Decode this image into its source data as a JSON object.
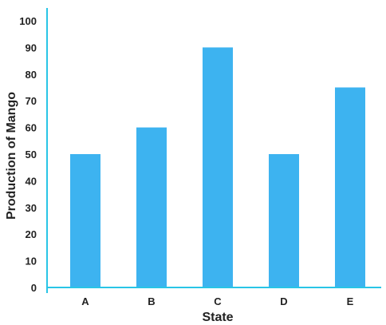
{
  "chart_data": {
    "type": "bar",
    "title": "",
    "xlabel": "State",
    "ylabel": "Production of Mango",
    "categories": [
      "A",
      "B",
      "C",
      "D",
      "E"
    ],
    "values": [
      50,
      60,
      90,
      50,
      75
    ],
    "ylim": [
      0,
      100
    ],
    "yticks": [
      0,
      10,
      20,
      30,
      40,
      50,
      60,
      70,
      80,
      90,
      100
    ],
    "grid": false,
    "bar_color": "#3db3f0",
    "axis_color": "#29c5e6"
  }
}
